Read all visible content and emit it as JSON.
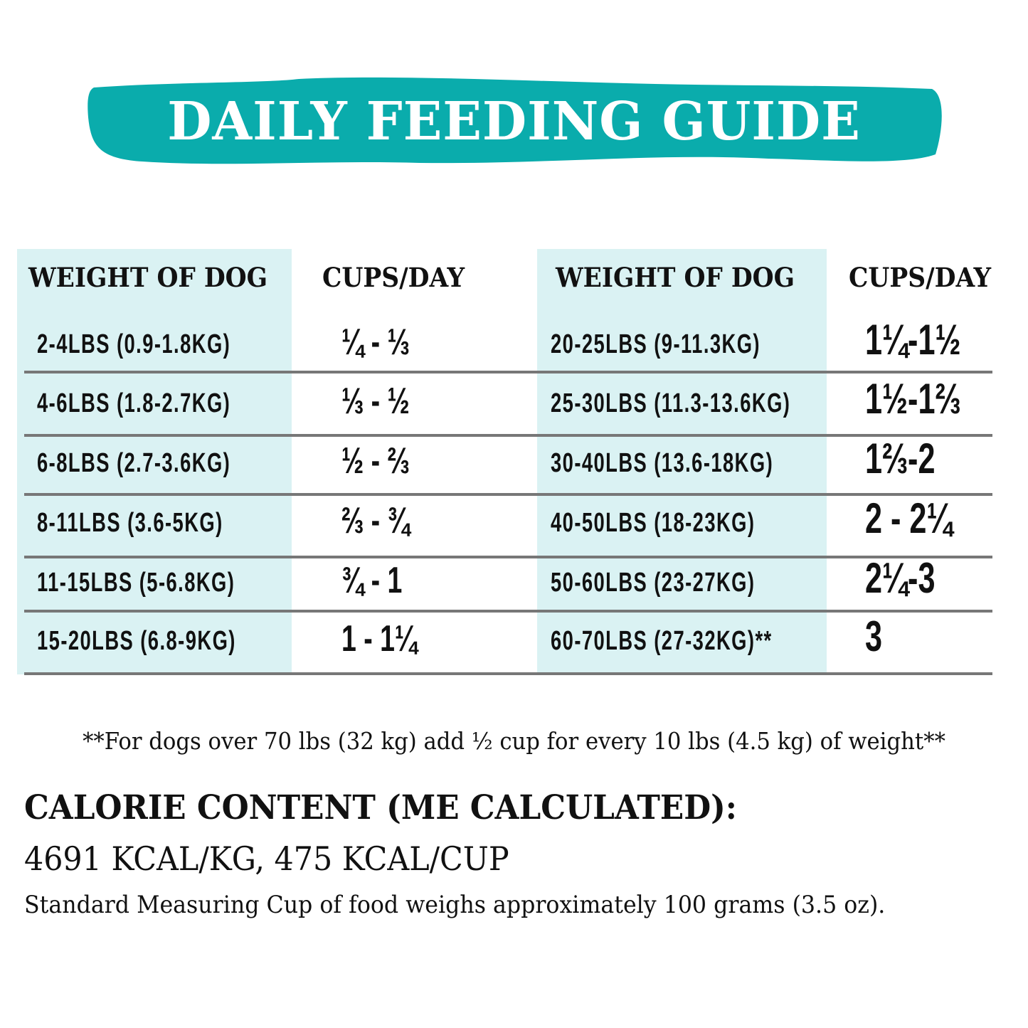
{
  "title": "DAILY FEEDING GUIDE",
  "colors": {
    "banner": "#0aacac",
    "column_shade": "#daf2f3",
    "rule": "#777777"
  },
  "headers": {
    "weight": "WEIGHT OF DOG",
    "cups": "CUPS/DAY"
  },
  "left_table": [
    {
      "weight": "2-4LBS (0.9-1.8KG)",
      "cups": "¼ - ⅓"
    },
    {
      "weight": "4-6LBS (1.8-2.7KG)",
      "cups": "⅓ - ½"
    },
    {
      "weight": "6-8LBS (2.7-3.6KG)",
      "cups": "½ - ⅔"
    },
    {
      "weight": "8-11LBS (3.6-5KG)",
      "cups": "⅔ - ¾"
    },
    {
      "weight": "11-15LBS (5-6.8KG)",
      "cups": "¾ - 1"
    },
    {
      "weight": "15-20LBS (6.8-9KG)",
      "cups": "1 - 1¼"
    }
  ],
  "right_table": [
    {
      "weight": "20-25LBS (9-11.3KG)",
      "cups": "1¼-1½"
    },
    {
      "weight": "25-30LBS (11.3-13.6KG)",
      "cups": "1½-1⅔"
    },
    {
      "weight": "30-40LBS (13.6-18KG)",
      "cups": "1⅔-2"
    },
    {
      "weight": "40-50LBS (18-23KG)",
      "cups": "2 - 2¼"
    },
    {
      "weight": "50-60LBS (23-27KG)",
      "cups": "2¼-3"
    },
    {
      "weight": "60-70LBS (27-32KG)**",
      "cups": "3"
    }
  ],
  "footnote": "**For dogs over 70 lbs (32 kg) add ½ cup for every 10 lbs (4.5 kg) of weight**",
  "calorie": {
    "heading": "CALORIE CONTENT (ME CALCULATED):",
    "values": "4691 KCAL/KG, 475 KCAL/CUP",
    "note": "Standard Measuring Cup of food weighs approximately 100 grams (3.5 oz)."
  }
}
